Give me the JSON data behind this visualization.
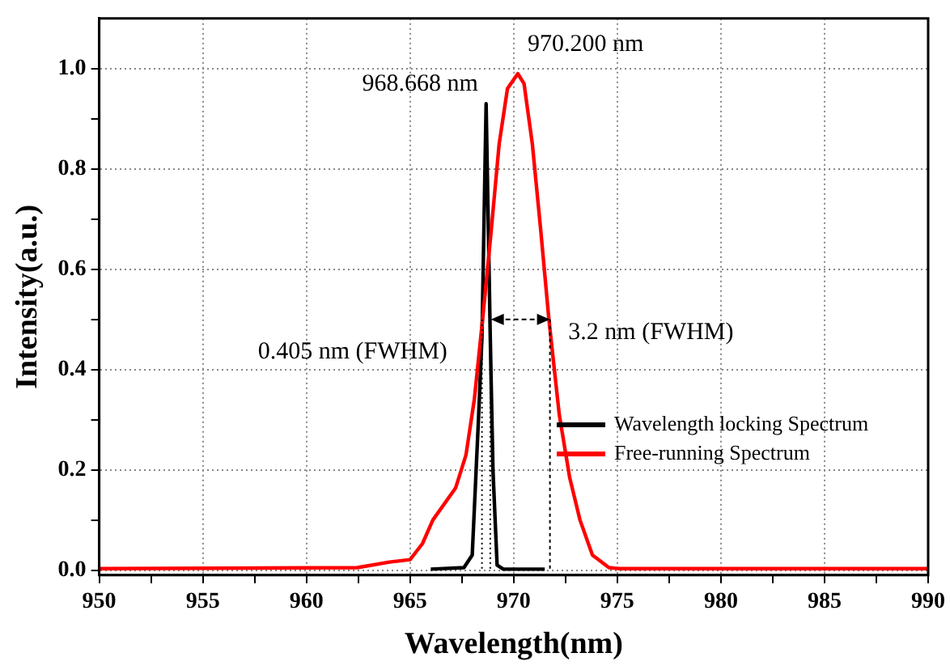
{
  "chart_data": {
    "type": "line",
    "xlabel": "Wavelength(nm)",
    "ylabel": "Intensity(a.u.)",
    "xlim": [
      950,
      990
    ],
    "ylim": [
      -0.01,
      1.1
    ],
    "xticks": [
      950,
      {
        "value": 952.5,
        "label": null
      },
      955,
      {
        "value": 957.5,
        "label": null
      },
      960,
      {
        "value": 962.5,
        "label": null
      },
      965,
      {
        "value": 967.5,
        "label": null
      },
      970,
      {
        "value": 972.5,
        "label": null
      },
      975,
      {
        "value": 977.5,
        "label": null
      },
      980,
      {
        "value": 982.5,
        "label": null
      },
      985,
      {
        "value": 987.5,
        "label": null
      },
      990
    ],
    "yticks": [
      {
        "value": 0,
        "label": "0.0"
      },
      {
        "value": 0.1,
        "label": null
      },
      0.2,
      {
        "value": 0.3,
        "label": null
      },
      0.4,
      {
        "value": 0.5,
        "label": null
      },
      0.6,
      {
        "value": 0.7,
        "label": null
      },
      0.8,
      {
        "value": 0.9,
        "label": null
      },
      {
        "value": 1,
        "label": "1.0"
      }
    ],
    "grid": true,
    "legend": "right",
    "marker": "none",
    "line_style": "solid",
    "series": [
      {
        "name": "Free-running Spectrum",
        "color": "#ff0000",
        "x": [
          950,
          962.45,
          964.0,
          965.0,
          965.6,
          966.1,
          967.2,
          967.7,
          968.1,
          968.5,
          968.9,
          969.3,
          969.7,
          970.2,
          970.5,
          970.9,
          971.3,
          971.7,
          972.2,
          972.7,
          973.2,
          973.8,
          974.6,
          975.1,
          990
        ],
        "values": [
          0.003,
          0.005,
          0.016,
          0.021,
          0.053,
          0.1,
          0.164,
          0.23,
          0.34,
          0.5,
          0.67,
          0.85,
          0.96,
          0.99,
          0.97,
          0.85,
          0.68,
          0.5,
          0.31,
          0.185,
          0.1,
          0.03,
          0.005,
          0.003,
          0.003
        ]
      },
      {
        "name": "Wavelength locking Spectrum",
        "color": "#000000",
        "x": [
          966.0,
          967.6,
          968.0,
          968.3,
          968.47,
          968.67,
          968.87,
          969.0,
          969.2,
          969.5,
          971.5
        ],
        "values": [
          0.002,
          0.005,
          0.03,
          0.3,
          0.465,
          0.93,
          0.465,
          0.2,
          0.01,
          0.002,
          0.002
        ]
      }
    ],
    "annotations": [
      {
        "text": "968.668 nm",
        "x": 968.67,
        "y": 0.93
      },
      {
        "text": "970.200 nm",
        "x": 970.2,
        "y": 0.99
      },
      "0.405 nm (FWHM)",
      {
        "text": "3.2 nm (FWHM)",
        "x": 971.7,
        "y": 0.5
      }
    ]
  }
}
